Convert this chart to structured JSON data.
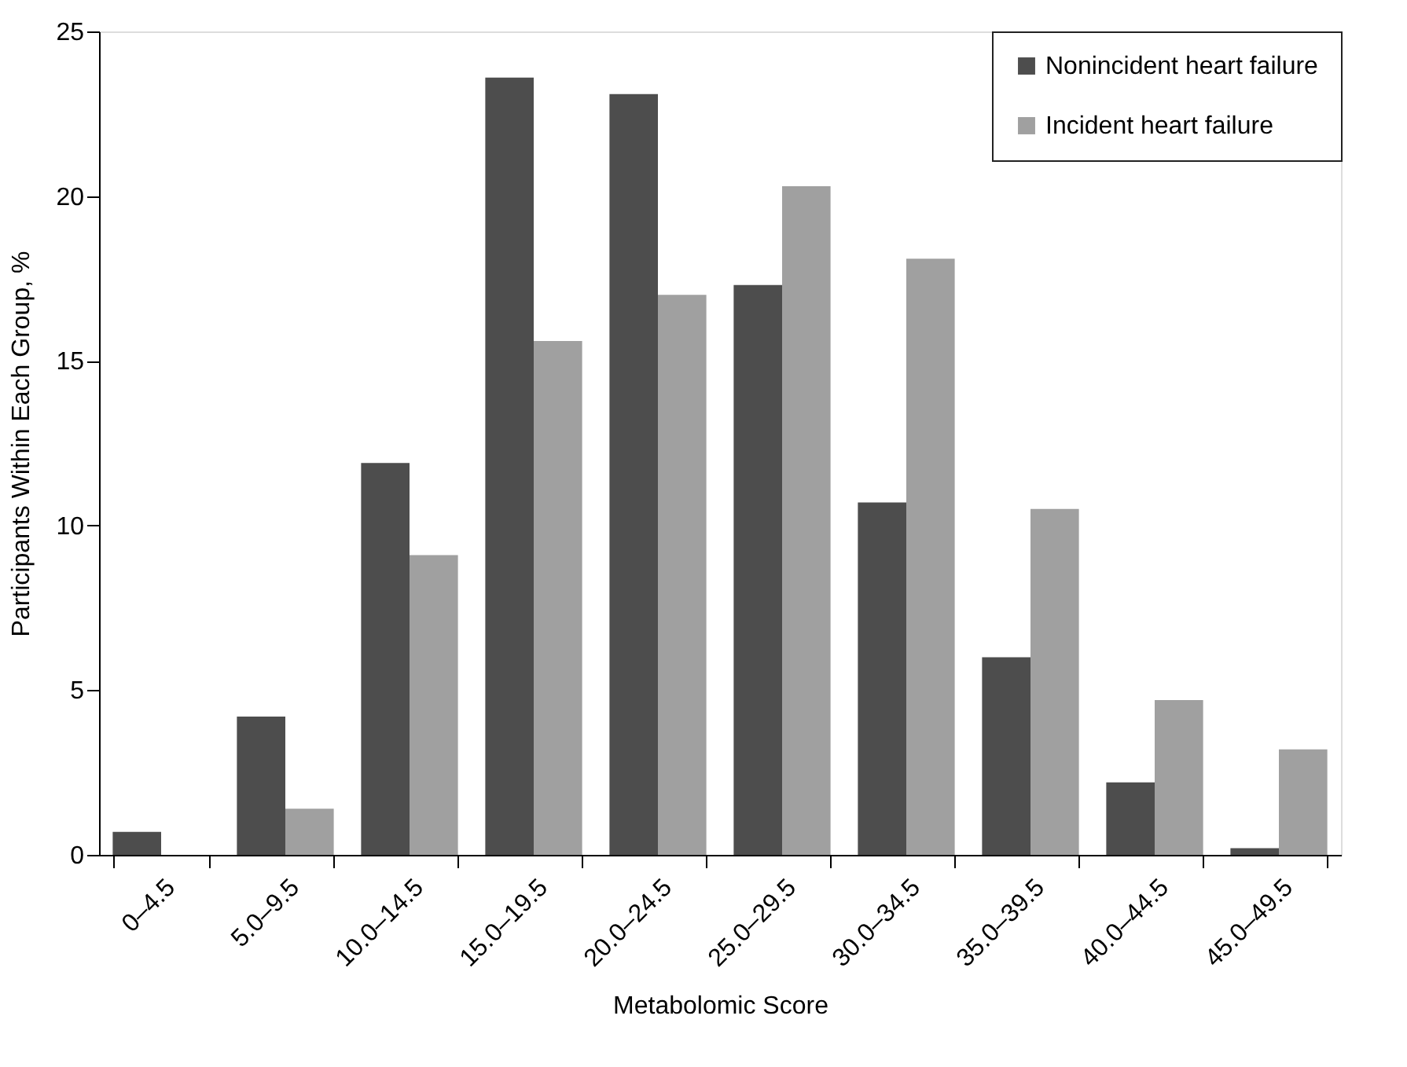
{
  "chart_data": {
    "type": "bar",
    "xlabel": "Metabolomic Score",
    "ylabel": "Participants Within Each Group, %",
    "categories": [
      "0–4.5",
      "5.0–9.5",
      "10.0–14.5",
      "15.0–19.5",
      "20.0–24.5",
      "25.0–29.5",
      "30.0–34.5",
      "35.0–39.5",
      "40.0–44.5",
      "45.0–49.5"
    ],
    "series": [
      {
        "name": "Nonincident heart failure",
        "color": "#4d4d4d",
        "values": [
          0.7,
          4.2,
          11.9,
          23.6,
          23.1,
          17.3,
          10.7,
          6.0,
          2.2,
          0.2
        ]
      },
      {
        "name": "Incident heart failure",
        "color": "#a0a0a0",
        "values": [
          0,
          1.4,
          9.1,
          15.6,
          17.0,
          20.3,
          18.1,
          10.5,
          4.7,
          3.2
        ]
      }
    ],
    "ylim": [
      0,
      25
    ],
    "yticks": [
      0,
      5,
      10,
      15,
      20,
      25
    ],
    "grid": false,
    "legend": "top right"
  }
}
